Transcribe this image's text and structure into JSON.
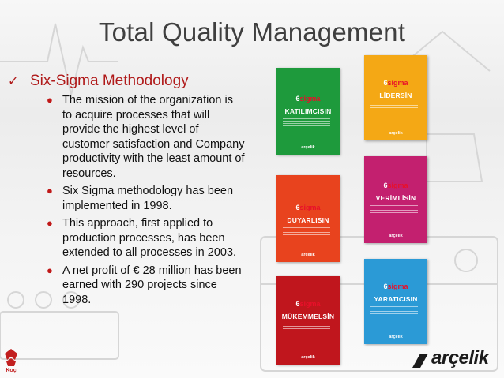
{
  "slide": {
    "title": "Total Quality Management",
    "heading": "Six-Sigma Methodology",
    "bullets": [
      "The mission of the organization is to acquire processes that will provide the highest level of customer satisfaction and Company productivity with the least amount of resources.",
      "Six Sigma methodology has been implemented in 1998.",
      "This approach, first applied to production processes, has been extended to all processes in 2003.",
      "A net profit of € 28 million has been earned with 290 projects since 1998."
    ]
  },
  "books": [
    {
      "title": "KATILIMCISIN",
      "color": "#1e9a3c"
    },
    {
      "title": "LİDERSİN",
      "color": "#f4a815"
    },
    {
      "title": "DUYARLISIN",
      "color": "#e8431e"
    },
    {
      "title": "VERİMLİSİN",
      "color": "#c3206f"
    },
    {
      "title": "MÜKEMMELSİN",
      "color": "#c0161d"
    },
    {
      "title": "YARATICISIN",
      "color": "#2b9ad6"
    }
  ],
  "book_sigma_prefix": "6",
  "book_sigma_word": "sigma",
  "book_brand": "arçelik",
  "logos": {
    "group_label": "Koç",
    "brand": "arçelik"
  },
  "colors": {
    "title": "#3f3f3f",
    "accent": "#b01a1a"
  }
}
